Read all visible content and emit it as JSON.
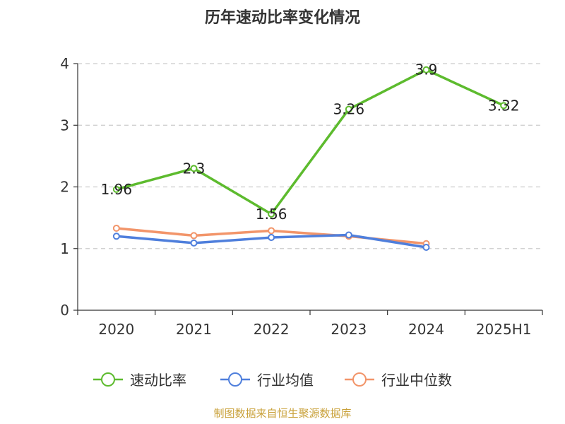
{
  "chart_data": {
    "type": "line",
    "title": "历年速动比率变化情况",
    "categories": [
      "2020",
      "2021",
      "2022",
      "2023",
      "2024",
      "2025H1"
    ],
    "ylim": [
      0,
      4
    ],
    "yticks": [
      "0",
      "1",
      "2",
      "3",
      "4"
    ],
    "grid": true,
    "legend_position": "bottom",
    "series": [
      {
        "name": "速动比率",
        "color": "#5dbb2e",
        "values": [
          1.96,
          2.3,
          1.56,
          3.26,
          3.9,
          3.32
        ],
        "labels": [
          "1.96",
          "2.3",
          "1.56",
          "3.26",
          "3.9",
          "3.32"
        ]
      },
      {
        "name": "行业均值",
        "color": "#4f7fdc",
        "values": [
          1.2,
          1.09,
          1.18,
          1.22,
          1.02,
          null
        ]
      },
      {
        "name": "行业中位数",
        "color": "#f2956a",
        "values": [
          1.33,
          1.21,
          1.29,
          1.2,
          1.08,
          null
        ]
      }
    ]
  },
  "source_text": "制图数据来自恒生聚源数据库"
}
